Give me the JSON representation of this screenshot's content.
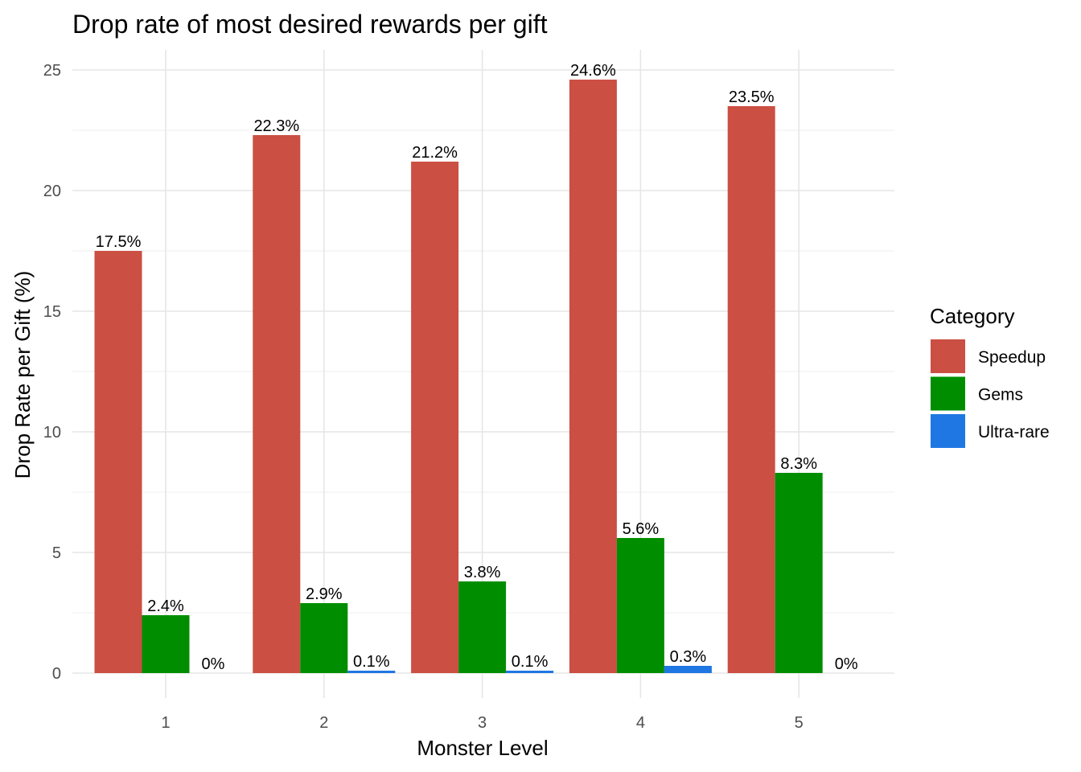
{
  "chart_data": {
    "type": "bar",
    "title": "Drop rate of most desired rewards per gift",
    "xlabel": "Monster Level",
    "ylabel": "Drop Rate per Gift (%)",
    "categories": [
      "1",
      "2",
      "3",
      "4",
      "5"
    ],
    "ylim": [
      0,
      26
    ],
    "yticks": [
      0,
      5,
      10,
      15,
      20,
      25
    ],
    "grid": true,
    "legend": {
      "title": "Category",
      "position": "right"
    },
    "series": [
      {
        "name": "Speedup",
        "color": "#CB4F43",
        "values": [
          17.5,
          22.3,
          21.2,
          24.6,
          23.5
        ],
        "labels": [
          "17.5%",
          "22.3%",
          "21.2%",
          "24.6%",
          "23.5%"
        ]
      },
      {
        "name": "Gems",
        "color": "#008E00",
        "values": [
          2.4,
          2.9,
          3.8,
          5.6,
          8.3
        ],
        "labels": [
          "2.4%",
          "2.9%",
          "3.8%",
          "5.6%",
          "8.3%"
        ]
      },
      {
        "name": "Ultra-rare",
        "color": "#1F77E3",
        "values": [
          0,
          0.1,
          0.1,
          0.3,
          0
        ],
        "labels": [
          "0%",
          "0.1%",
          "0.1%",
          "0.3%",
          "0%"
        ]
      }
    ]
  }
}
